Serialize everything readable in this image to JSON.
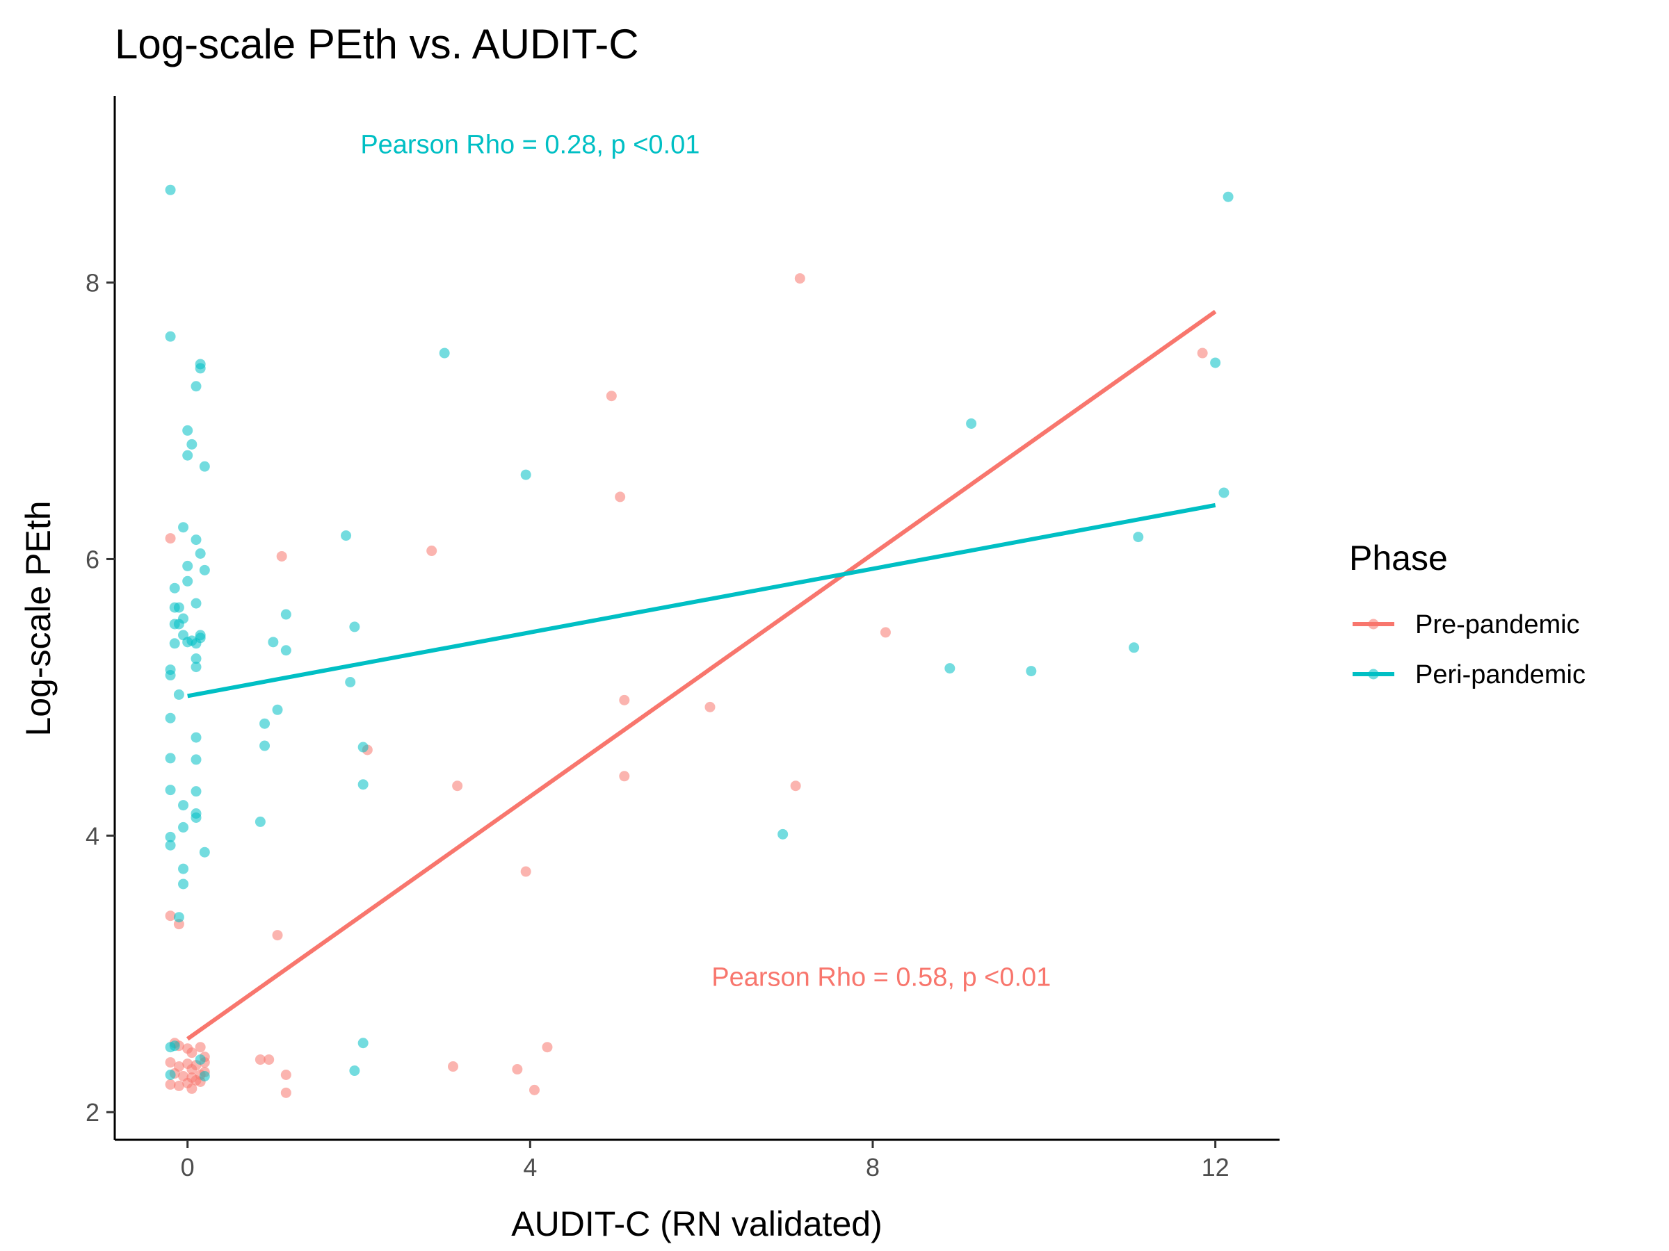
{
  "chart_data": {
    "type": "scatter",
    "title": "Log-scale PEth vs. AUDIT-C",
    "xlabel": "AUDIT-C (RN validated)",
    "ylabel": "Log-scale PEth",
    "xlim": [
      -0.85,
      12.75
    ],
    "ylim": [
      1.8,
      9.35
    ],
    "xticks": [
      0,
      4,
      8,
      12
    ],
    "yticks": [
      2,
      4,
      6,
      8
    ],
    "grid": false,
    "legend": {
      "title": "Phase",
      "position": "right"
    },
    "colors": {
      "pre": "#F8766D",
      "peri": "#00BFC4"
    },
    "series": [
      {
        "name": "Pre-pandemic",
        "color": "#F8766D",
        "fit": {
          "x": [
            0,
            12
          ],
          "y": [
            2.53,
            7.79
          ]
        },
        "annotation": {
          "text": "Pearson Rho = 0.58, p <0.01",
          "x": 8.1,
          "y": 2.98
        },
        "points": [
          [
            -0.2,
            6.15
          ],
          [
            -0.2,
            3.42
          ],
          [
            -0.1,
            3.36
          ],
          [
            -0.15,
            2.5
          ],
          [
            -0.1,
            2.48
          ],
          [
            0.0,
            2.46
          ],
          [
            0.05,
            2.43
          ],
          [
            0.15,
            2.47
          ],
          [
            0.2,
            2.4
          ],
          [
            -0.2,
            2.36
          ],
          [
            -0.1,
            2.33
          ],
          [
            0.0,
            2.35
          ],
          [
            0.05,
            2.31
          ],
          [
            0.1,
            2.34
          ],
          [
            0.2,
            2.36
          ],
          [
            -0.15,
            2.28
          ],
          [
            -0.05,
            2.26
          ],
          [
            0.05,
            2.25
          ],
          [
            0.15,
            2.27
          ],
          [
            0.2,
            2.29
          ],
          [
            -0.2,
            2.2
          ],
          [
            -0.1,
            2.19
          ],
          [
            0.0,
            2.21
          ],
          [
            0.05,
            2.17
          ],
          [
            0.1,
            2.23
          ],
          [
            0.15,
            2.22
          ],
          [
            0.85,
            2.38
          ],
          [
            0.95,
            2.38
          ],
          [
            1.05,
            3.28
          ],
          [
            1.15,
            2.27
          ],
          [
            1.15,
            2.14
          ],
          [
            1.1,
            6.02
          ],
          [
            2.1,
            4.62
          ],
          [
            2.85,
            6.06
          ],
          [
            3.1,
            2.33
          ],
          [
            3.15,
            4.36
          ],
          [
            3.85,
            2.31
          ],
          [
            3.95,
            3.74
          ],
          [
            4.05,
            2.16
          ],
          [
            4.2,
            2.47
          ],
          [
            4.95,
            7.18
          ],
          [
            5.05,
            6.45
          ],
          [
            5.1,
            4.98
          ],
          [
            5.1,
            4.43
          ],
          [
            6.1,
            4.93
          ],
          [
            7.1,
            4.36
          ],
          [
            7.15,
            8.03
          ],
          [
            8.15,
            5.47
          ],
          [
            11.85,
            7.49
          ]
        ]
      },
      {
        "name": "Peri-pandemic",
        "color": "#00BFC4",
        "fit": {
          "x": [
            0,
            12
          ],
          "y": [
            5.01,
            6.39
          ]
        },
        "annotation": {
          "text": "Pearson Rho = 0.28, p <0.01",
          "x": 4.0,
          "y": 9.0
        },
        "points": [
          [
            -0.2,
            8.67
          ],
          [
            -0.2,
            7.61
          ],
          [
            0.15,
            7.41
          ],
          [
            0.15,
            7.38
          ],
          [
            0.1,
            7.25
          ],
          [
            0.0,
            6.93
          ],
          [
            0.05,
            6.83
          ],
          [
            0.0,
            6.75
          ],
          [
            0.2,
            6.67
          ],
          [
            -0.05,
            6.23
          ],
          [
            0.1,
            6.14
          ],
          [
            0.15,
            6.04
          ],
          [
            0.0,
            5.95
          ],
          [
            0.2,
            5.92
          ],
          [
            0.0,
            5.84
          ],
          [
            -0.15,
            5.79
          ],
          [
            0.1,
            5.68
          ],
          [
            -0.15,
            5.65
          ],
          [
            -0.1,
            5.65
          ],
          [
            -0.05,
            5.57
          ],
          [
            -0.15,
            5.53
          ],
          [
            -0.1,
            5.53
          ],
          [
            -0.05,
            5.45
          ],
          [
            0.15,
            5.45
          ],
          [
            0.15,
            5.43
          ],
          [
            -0.15,
            5.39
          ],
          [
            0.0,
            5.4
          ],
          [
            0.05,
            5.41
          ],
          [
            0.1,
            5.39
          ],
          [
            0.1,
            5.28
          ],
          [
            0.1,
            5.22
          ],
          [
            -0.2,
            5.2
          ],
          [
            -0.2,
            5.16
          ],
          [
            -0.1,
            5.02
          ],
          [
            -0.2,
            4.85
          ],
          [
            0.1,
            4.71
          ],
          [
            -0.2,
            4.56
          ],
          [
            0.1,
            4.55
          ],
          [
            -0.2,
            4.33
          ],
          [
            0.1,
            4.32
          ],
          [
            -0.05,
            4.22
          ],
          [
            0.1,
            4.16
          ],
          [
            0.1,
            4.13
          ],
          [
            -0.05,
            4.06
          ],
          [
            -0.2,
            3.99
          ],
          [
            -0.2,
            3.93
          ],
          [
            0.2,
            3.88
          ],
          [
            -0.05,
            3.76
          ],
          [
            -0.05,
            3.65
          ],
          [
            -0.1,
            3.41
          ],
          [
            -0.2,
            2.47
          ],
          [
            -0.15,
            2.48
          ],
          [
            -0.2,
            2.27
          ],
          [
            0.15,
            2.38
          ],
          [
            0.2,
            2.26
          ],
          [
            0.85,
            4.1
          ],
          [
            0.9,
            4.65
          ],
          [
            0.9,
            4.81
          ],
          [
            1.0,
            5.4
          ],
          [
            1.05,
            4.91
          ],
          [
            1.15,
            5.34
          ],
          [
            1.15,
            5.6
          ],
          [
            1.85,
            6.17
          ],
          [
            1.9,
            5.11
          ],
          [
            1.95,
            5.51
          ],
          [
            2.05,
            4.64
          ],
          [
            2.05,
            4.37
          ],
          [
            2.05,
            2.5
          ],
          [
            1.95,
            2.3
          ],
          [
            3.0,
            7.49
          ],
          [
            3.95,
            6.61
          ],
          [
            6.95,
            4.01
          ],
          [
            8.9,
            5.21
          ],
          [
            9.15,
            6.98
          ],
          [
            9.85,
            5.19
          ],
          [
            11.05,
            5.36
          ],
          [
            11.1,
            6.16
          ],
          [
            12.0,
            7.42
          ],
          [
            12.1,
            6.48
          ],
          [
            12.15,
            8.62
          ]
        ]
      }
    ]
  }
}
